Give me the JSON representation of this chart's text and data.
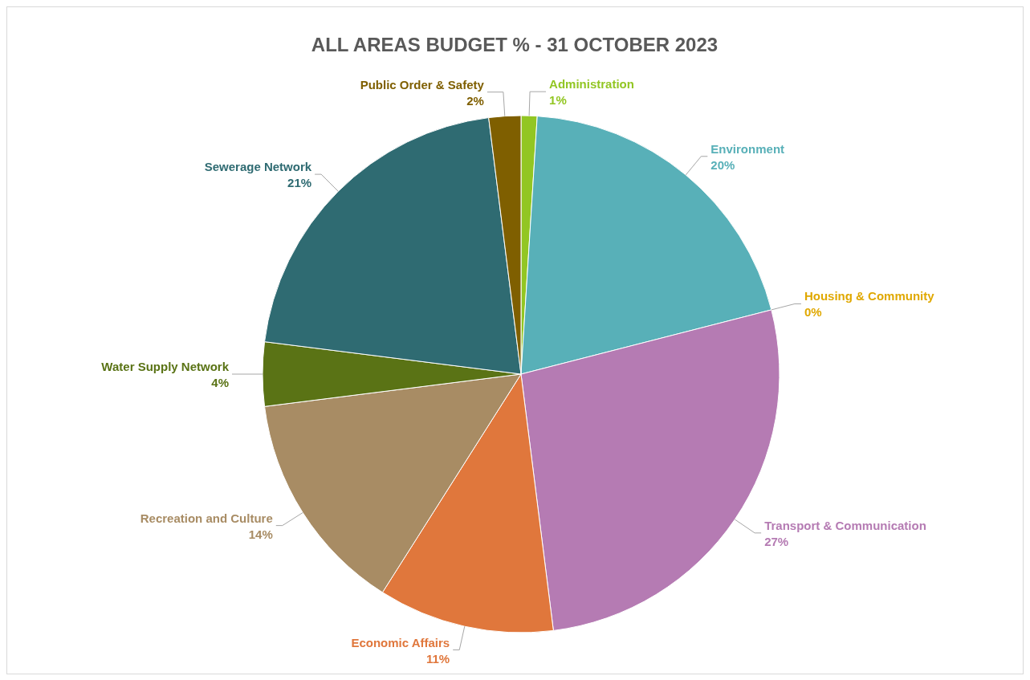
{
  "chart_data": {
    "type": "pie",
    "title": "ALL AREAS BUDGET % - 31 OCTOBER 2023",
    "categories": [
      "Administration",
      "Environment",
      "Housing & Community",
      "Transport & Communication",
      "Economic Affairs",
      "Recreation and Culture",
      "Water Supply Network",
      "Sewerage Network",
      "Public Order & Safety"
    ],
    "values": [
      1,
      20,
      0,
      27,
      11,
      14,
      4,
      21,
      2
    ],
    "value_labels": [
      "1%",
      "20%",
      "0%",
      "27%",
      "11%",
      "14%",
      "4%",
      "21%",
      "2%"
    ],
    "colors": [
      "#92c623",
      "#58b0b8",
      "#e0a800",
      "#b57bb3",
      "#e0773c",
      "#a88c64",
      "#5a7315",
      "#2f6b72",
      "#7f5f00"
    ],
    "legend": false
  }
}
